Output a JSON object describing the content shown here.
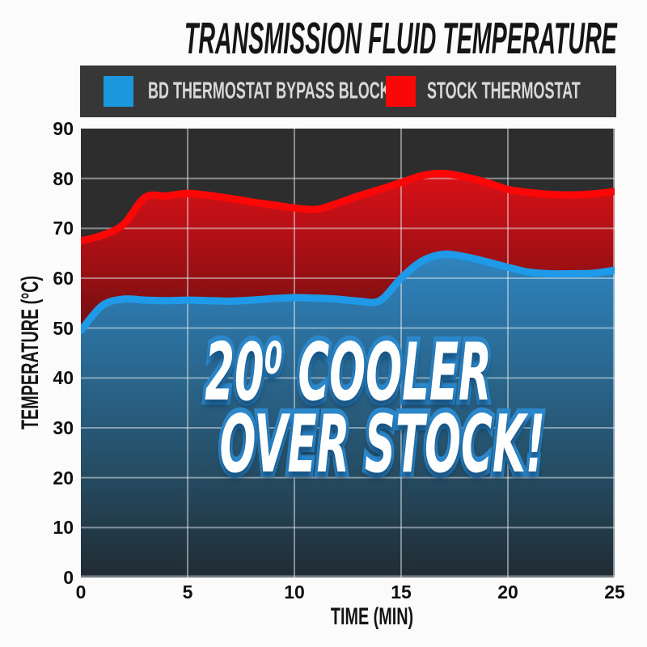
{
  "title": "TRANSMISSION FLUID TEMPERATURE",
  "legend": {
    "items": [
      {
        "label": "BD THERMOSTAT BYPASS BLOCK",
        "color": "#1a97dd"
      },
      {
        "label": "STOCK THERMOSTAT",
        "color": "#fa0707"
      }
    ]
  },
  "annotation": {
    "line1": "20⁰ COOLER",
    "line2": "OVER STOCK!"
  },
  "colors": {
    "page-bg": "#fbfbfb",
    "title-color": "#151515",
    "legend-bar": "#373737",
    "legend-text": "#d8d8d8",
    "plot-bg": "#2d2d2d",
    "annotation-fill": "#ffffff",
    "annotation-outline": "#2b86ca"
  },
  "chart_data": {
    "type": "area",
    "title": "TRANSMISSION FLUID TEMPERATURE",
    "xlabel": "TIME (MIN)",
    "ylabel": "TEMPERATURE (°C)",
    "xlim": [
      0,
      25
    ],
    "ylim": [
      0,
      90
    ],
    "x_ticks": [
      0,
      5,
      10,
      15,
      20,
      25
    ],
    "y_ticks": [
      0,
      10,
      20,
      30,
      40,
      50,
      60,
      70,
      80,
      90
    ],
    "grid": true,
    "legend_position": "top",
    "annotation": "20⁰ COOLER OVER STOCK!",
    "x": [
      0,
      1,
      2,
      3,
      4,
      5,
      6,
      7,
      8,
      9,
      10,
      11,
      12,
      13,
      14,
      15,
      16,
      17,
      18,
      19,
      20,
      21,
      22,
      23,
      24,
      25
    ],
    "series": [
      {
        "name": "BD THERMOSTAT BYPASS BLOCK",
        "color": "#1f9ae8",
        "values": [
          49.5,
          54.5,
          55.8,
          55.6,
          55.5,
          55.6,
          55.5,
          55.4,
          55.6,
          55.9,
          56.1,
          56.0,
          55.8,
          55.4,
          55.5,
          60.0,
          63.5,
          64.8,
          64.3,
          63.3,
          62.2,
          61.2,
          60.9,
          60.9,
          61.0,
          61.6
        ]
      },
      {
        "name": "STOCK THERMOSTAT",
        "color": "#fb0707",
        "values": [
          67.5,
          68.6,
          70.8,
          76.2,
          76.5,
          77.0,
          76.6,
          76.0,
          75.3,
          74.7,
          74.1,
          73.8,
          75.0,
          76.5,
          77.8,
          79.2,
          80.6,
          81.0,
          80.3,
          79.2,
          77.8,
          77.2,
          76.8,
          76.7,
          76.9,
          77.4
        ]
      }
    ]
  }
}
